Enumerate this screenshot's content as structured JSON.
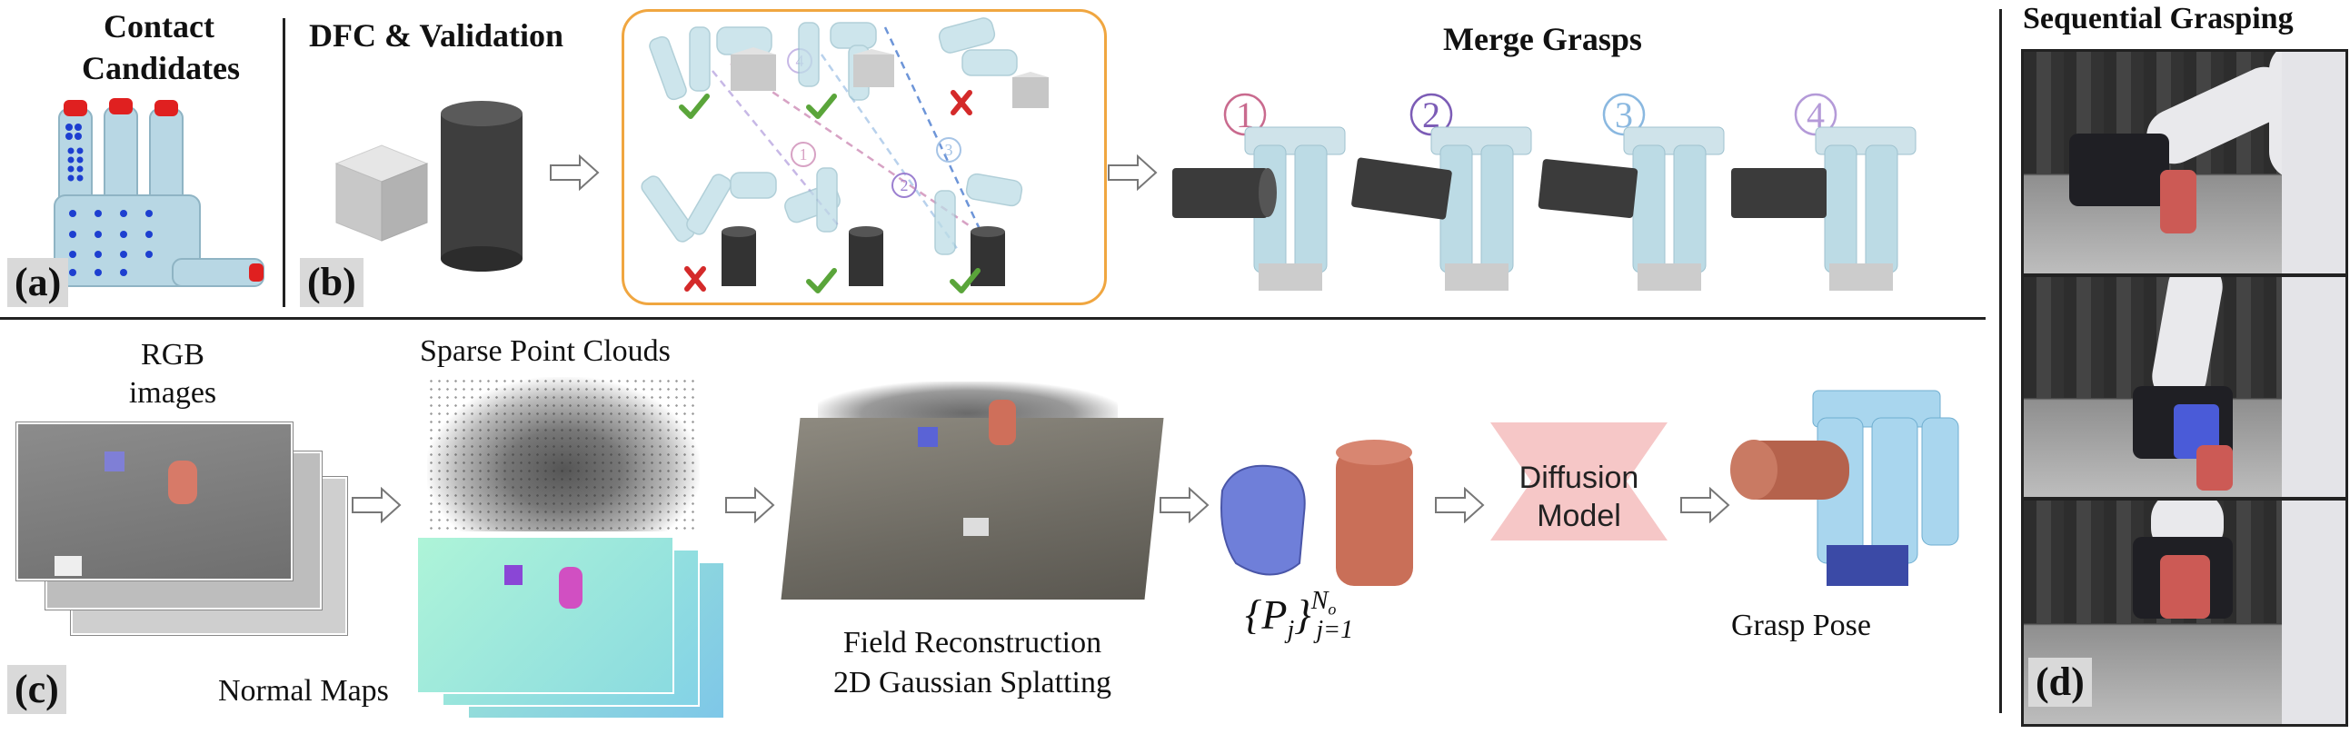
{
  "panels": {
    "a": {
      "title_line1": "Contact",
      "title_line2": "Candidates",
      "label": "(a)"
    },
    "b": {
      "title": "DFC & Validation",
      "label": "(b)",
      "merge_title": "Merge Grasps",
      "grasp_numbers": [
        "1",
        "2",
        "3",
        "4"
      ]
    },
    "c": {
      "label": "(c)",
      "rgb_line1": "RGB",
      "rgb_line2": "images",
      "sparse": "Sparse Point Clouds",
      "normal": "Normal Maps",
      "field_line1": "Field Reconstruction",
      "field_line2": "2D Gaussian Splatting",
      "diffusion_line1": "Diffusion",
      "diffusion_line2": "Model",
      "grasp_pose": "Grasp Pose"
    },
    "d": {
      "title": "Sequential Grasping",
      "label": "(d)"
    }
  },
  "colors": {
    "check": "#5aa53a",
    "cross": "#d42a2a",
    "frame": "#f0a640",
    "diffusion": "#f6c7c7",
    "hand": "#b9dbe6",
    "cylinder": "#3a3a3a",
    "grasp1": "#c96a8e",
    "grasp2": "#7c5cb6",
    "grasp3": "#8ab8e0",
    "grasp4": "#b49ad8"
  },
  "icons": [
    "check-icon",
    "cross-icon",
    "arrow-right-icon",
    "robot-hand-icon"
  ]
}
